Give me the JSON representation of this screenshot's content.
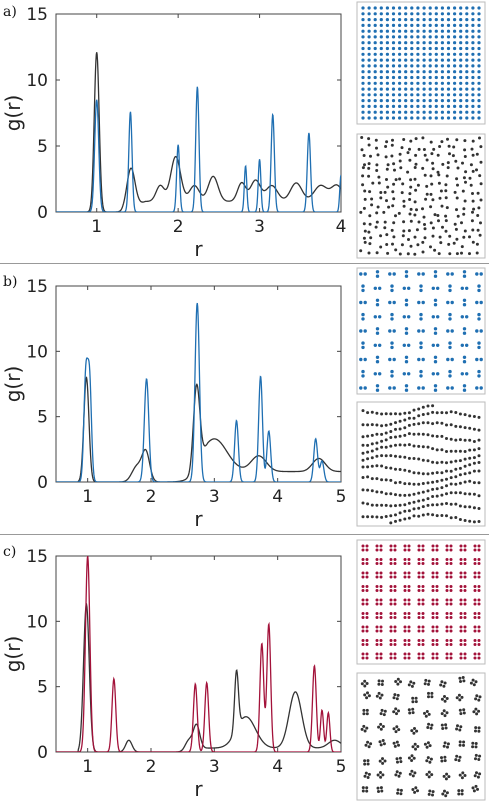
{
  "colors": {
    "blue": "#1f6fb2",
    "black": "#333333",
    "red": "#a3123a",
    "frame": "#444444",
    "divider": "#999999"
  },
  "chart_data": [
    {
      "type": "line",
      "panel_label": "a)",
      "xlabel": "r",
      "ylabel": "g(r)",
      "xlim": [
        0.5,
        4.0
      ],
      "ylim": [
        0,
        15
      ],
      "xticks": [
        "1",
        "2",
        "3",
        "4"
      ],
      "yticks": [
        "0",
        "5",
        "10",
        "15"
      ],
      "series": [
        {
          "color": "blue",
          "peaks": [
            [
              1.0,
              8.5,
              0.025
            ],
            [
              1.414,
              7.6,
              0.02
            ],
            [
              2.0,
              5.1,
              0.018
            ],
            [
              2.236,
              9.5,
              0.02
            ],
            [
              2.828,
              3.5,
              0.015
            ],
            [
              3.0,
              4.0,
              0.016
            ],
            [
              3.162,
              7.4,
              0.02
            ],
            [
              3.606,
              6.0,
              0.02
            ],
            [
              4.0,
              2.8,
              0.015
            ]
          ]
        },
        {
          "color": "black",
          "peaks": [
            [
              1.0,
              12.1,
              0.03
            ],
            [
              1.42,
              3.0,
              0.05
            ],
            [
              1.78,
              1.2,
              0.05
            ],
            [
              1.97,
              3.4,
              0.06
            ],
            [
              2.2,
              1.2,
              0.06
            ],
            [
              2.43,
              1.9,
              0.06
            ],
            [
              2.78,
              1.4,
              0.05
            ],
            [
              2.95,
              1.6,
              0.06
            ],
            [
              3.15,
              1.2,
              0.07
            ],
            [
              3.45,
              1.4,
              0.07
            ],
            [
              3.75,
              1.2,
              0.08
            ],
            [
              3.95,
              1.2,
              0.07
            ]
          ],
          "baseline": 0.8,
          "baseline_from": 1.3
        }
      ],
      "insets": [
        {
          "lattice": "square",
          "color": "blue"
        },
        {
          "lattice": "disordered",
          "color": "black"
        }
      ]
    },
    {
      "type": "line",
      "panel_label": "b)",
      "xlabel": "r",
      "ylabel": "g(r)",
      "xlim": [
        0.5,
        5.0
      ],
      "ylim": [
        0,
        15
      ],
      "xticks": [
        "1",
        "2",
        "3",
        "4",
        "5"
      ],
      "yticks": [
        "0",
        "5",
        "10",
        "15"
      ],
      "series": [
        {
          "color": "blue",
          "peaks": [
            [
              0.97,
              7.9,
              0.03
            ],
            [
              1.03,
              7.7,
              0.03
            ],
            [
              1.93,
              7.9,
              0.035
            ],
            [
              2.73,
              13.7,
              0.035
            ],
            [
              3.35,
              4.7,
              0.03
            ],
            [
              3.73,
              8.1,
              0.03
            ],
            [
              3.86,
              3.9,
              0.03
            ],
            [
              4.6,
              3.3,
              0.03
            ],
            [
              4.7,
              1.6,
              0.03
            ]
          ]
        },
        {
          "color": "black",
          "peaks": [
            [
              0.98,
              8.0,
              0.04
            ],
            [
              1.78,
              1.2,
              0.08
            ],
            [
              1.92,
              2.2,
              0.06
            ],
            [
              2.72,
              6.2,
              0.05
            ],
            [
              3.0,
              2.5,
              0.2
            ],
            [
              3.7,
              1.2,
              0.12
            ],
            [
              4.65,
              1.0,
              0.1
            ]
          ],
          "baseline": 0.8,
          "baseline_from": 2.6
        }
      ],
      "insets": [
        {
          "lattice": "pairs",
          "color": "blue"
        },
        {
          "lattice": "wavy-chains",
          "color": "black"
        }
      ]
    },
    {
      "type": "line",
      "panel_label": "c)",
      "xlabel": "r",
      "ylabel": "g(r)",
      "xlim": [
        0.5,
        5.0
      ],
      "ylim": [
        0,
        15
      ],
      "xticks": [
        "1",
        "2",
        "3",
        "4",
        "5"
      ],
      "yticks": [
        "0",
        "5",
        "10",
        "15"
      ],
      "series": [
        {
          "color": "red",
          "peaks": [
            [
              1.0,
              15.0,
              0.035
            ],
            [
              1.414,
              5.6,
              0.03
            ],
            [
              2.7,
              5.2,
              0.03
            ],
            [
              2.88,
              5.3,
              0.03
            ],
            [
              3.75,
              8.3,
              0.03
            ],
            [
              3.86,
              9.8,
              0.03
            ],
            [
              4.58,
              6.6,
              0.03
            ],
            [
              4.7,
              3.2,
              0.025
            ],
            [
              4.8,
              3.0,
              0.025
            ]
          ]
        },
        {
          "color": "black",
          "peaks": [
            [
              0.98,
              11.3,
              0.045
            ],
            [
              1.65,
              0.9,
              0.05
            ],
            [
              2.6,
              0.8,
              0.06
            ],
            [
              2.72,
              1.8,
              0.05
            ],
            [
              3.35,
              4.5,
              0.03
            ],
            [
              3.5,
              2.4,
              0.15
            ],
            [
              4.28,
              4.3,
              0.1
            ],
            [
              4.9,
              0.6,
              0.1
            ]
          ],
          "baseline": 0.3,
          "baseline_from": 2.5
        }
      ],
      "insets": [
        {
          "lattice": "quads",
          "color": "red"
        },
        {
          "lattice": "quad-clusters",
          "color": "black"
        }
      ]
    }
  ]
}
